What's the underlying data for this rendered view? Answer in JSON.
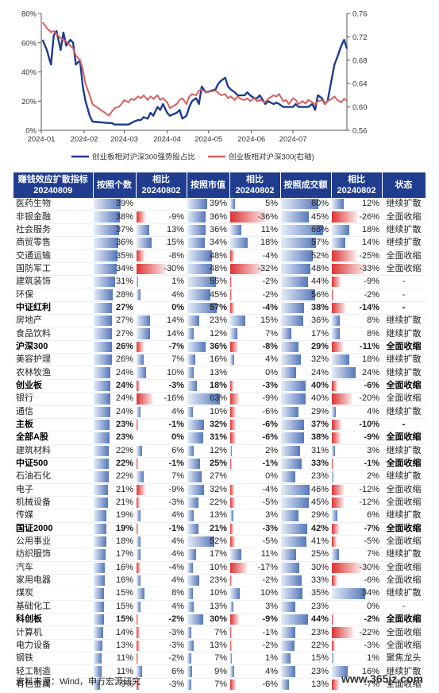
{
  "chart_data": [
    {
      "type": "line",
      "x_ticks": [
        "2024-01",
        "2024-02",
        "2024-03",
        "2024-04",
        "2024-05",
        "2024-06",
        "2024-07"
      ],
      "y_ticks": [
        "0%",
        "20%",
        "40%",
        "60%",
        "80%"
      ],
      "y2_ticks": [
        "0.56",
        "0.60",
        "0.64",
        "0.68",
        "0.72",
        "0.76"
      ],
      "ylim": [
        0,
        80
      ],
      "y2lim": [
        0.56,
        0.76
      ],
      "xlim": [
        "2024-01-01",
        "2024-08-09"
      ],
      "legend_position": "bottom",
      "series": [
        {
          "name": "创业板相对沪深300强势股占比",
          "axis": "left",
          "color": "#1f3a8f",
          "x": [
            "2024-01-02",
            "2024-01-05",
            "2024-01-08",
            "2024-01-10",
            "2024-01-12",
            "2024-01-15",
            "2024-01-17",
            "2024-01-19",
            "2024-01-22",
            "2024-01-24",
            "2024-01-26",
            "2024-01-29",
            "2024-01-31",
            "2024-02-02",
            "2024-02-05",
            "2024-02-07",
            "2024-02-19",
            "2024-02-21",
            "2024-02-23",
            "2024-02-26",
            "2024-02-28",
            "2024-03-01",
            "2024-03-04",
            "2024-03-06",
            "2024-03-08",
            "2024-03-11",
            "2024-03-13",
            "2024-03-15",
            "2024-03-18",
            "2024-03-20",
            "2024-03-22",
            "2024-03-25",
            "2024-03-27",
            "2024-03-29",
            "2024-04-01",
            "2024-04-03",
            "2024-04-08",
            "2024-04-10",
            "2024-04-12",
            "2024-04-15",
            "2024-04-17",
            "2024-04-19",
            "2024-04-22",
            "2024-04-24",
            "2024-04-26",
            "2024-04-29",
            "2024-05-06",
            "2024-05-08",
            "2024-05-10",
            "2024-05-13",
            "2024-05-15",
            "2024-05-17",
            "2024-05-20",
            "2024-05-22",
            "2024-05-24",
            "2024-05-27",
            "2024-05-29",
            "2024-05-31",
            "2024-06-03",
            "2024-06-05",
            "2024-06-07",
            "2024-06-11",
            "2024-06-13",
            "2024-06-17",
            "2024-06-19",
            "2024-06-21",
            "2024-06-24",
            "2024-06-26",
            "2024-06-28",
            "2024-07-01",
            "2024-07-03",
            "2024-07-05",
            "2024-07-08",
            "2024-07-10",
            "2024-07-12",
            "2024-07-15",
            "2024-07-17",
            "2024-07-19",
            "2024-07-22",
            "2024-07-24",
            "2024-07-26",
            "2024-07-29",
            "2024-07-31",
            "2024-08-02",
            "2024-08-05",
            "2024-08-07",
            "2024-08-09"
          ],
          "values": [
            62,
            55,
            45,
            65,
            68,
            55,
            67,
            58,
            62,
            60,
            45,
            48,
            30,
            20,
            10,
            6,
            5,
            5,
            4,
            4,
            4,
            4,
            4,
            5,
            6,
            7,
            7,
            9,
            8,
            12,
            10,
            16,
            14,
            18,
            12,
            10,
            12,
            14,
            8,
            10,
            16,
            20,
            22,
            18,
            30,
            26,
            28,
            32,
            34,
            36,
            30,
            28,
            26,
            24,
            24,
            24,
            26,
            24,
            22,
            22,
            24,
            18,
            20,
            18,
            19,
            18,
            16,
            16,
            16,
            16,
            18,
            16,
            16,
            16,
            16,
            18,
            14,
            24,
            22,
            18,
            20,
            35,
            45,
            50,
            58,
            62,
            56
          ]
        },
        {
          "name": "创业板相对沪深300(右轴)",
          "axis": "right",
          "color": "#d95f5f",
          "x": [
            "2024-01-02",
            "2024-01-05",
            "2024-01-08",
            "2024-01-10",
            "2024-01-12",
            "2024-01-15",
            "2024-01-17",
            "2024-01-19",
            "2024-01-22",
            "2024-01-24",
            "2024-01-26",
            "2024-01-29",
            "2024-01-31",
            "2024-02-02",
            "2024-02-05",
            "2024-02-07",
            "2024-02-19",
            "2024-02-21",
            "2024-02-23",
            "2024-02-26",
            "2024-02-28",
            "2024-03-01",
            "2024-03-04",
            "2024-03-06",
            "2024-03-08",
            "2024-03-11",
            "2024-03-13",
            "2024-03-15",
            "2024-03-18",
            "2024-03-20",
            "2024-03-22",
            "2024-03-25",
            "2024-03-27",
            "2024-03-29",
            "2024-04-01",
            "2024-04-03",
            "2024-04-08",
            "2024-04-10",
            "2024-04-12",
            "2024-04-15",
            "2024-04-17",
            "2024-04-19",
            "2024-04-22",
            "2024-04-24",
            "2024-04-26",
            "2024-04-29",
            "2024-05-06",
            "2024-05-08",
            "2024-05-10",
            "2024-05-13",
            "2024-05-15",
            "2024-05-17",
            "2024-05-20",
            "2024-05-22",
            "2024-05-24",
            "2024-05-27",
            "2024-05-29",
            "2024-05-31",
            "2024-06-03",
            "2024-06-05",
            "2024-06-07",
            "2024-06-11",
            "2024-06-13",
            "2024-06-17",
            "2024-06-19",
            "2024-06-21",
            "2024-06-24",
            "2024-06-26",
            "2024-06-28",
            "2024-07-01",
            "2024-07-03",
            "2024-07-05",
            "2024-07-08",
            "2024-07-10",
            "2024-07-12",
            "2024-07-15",
            "2024-07-17",
            "2024-07-19",
            "2024-07-22",
            "2024-07-24",
            "2024-07-26",
            "2024-07-29",
            "2024-07-31",
            "2024-08-02",
            "2024-08-05",
            "2024-08-07",
            "2024-08-09"
          ],
          "values": [
            0.745,
            0.735,
            0.728,
            0.73,
            0.725,
            0.718,
            0.715,
            0.712,
            0.705,
            0.7,
            0.688,
            0.68,
            0.665,
            0.64,
            0.62,
            0.605,
            0.585,
            0.592,
            0.598,
            0.6,
            0.605,
            0.612,
            0.608,
            0.614,
            0.612,
            0.618,
            0.615,
            0.62,
            0.612,
            0.618,
            0.614,
            0.62,
            0.612,
            0.615,
            0.608,
            0.598,
            0.605,
            0.612,
            0.615,
            0.605,
            0.618,
            0.622,
            0.62,
            0.628,
            0.63,
            0.625,
            0.628,
            0.624,
            0.62,
            0.622,
            0.615,
            0.618,
            0.612,
            0.618,
            0.614,
            0.612,
            0.615,
            0.61,
            0.615,
            0.61,
            0.612,
            0.608,
            0.614,
            0.62,
            0.618,
            0.622,
            0.61,
            0.612,
            0.605,
            0.615,
            0.612,
            0.605,
            0.61,
            0.606,
            0.612,
            0.608,
            0.604,
            0.61,
            0.612,
            0.605,
            0.61,
            0.614,
            0.618,
            0.612,
            0.608,
            0.614,
            0.61
          ]
        }
      ]
    },
    {
      "type": "table",
      "headers": [
        "赚钱效应扩散指标\n20240809",
        "按照个数",
        "相比\n20240802",
        "按照市值",
        "相比\n20240802",
        "按照成交额",
        "相比\n20240802",
        "状态"
      ],
      "value_columns": [
        {
          "key": "c",
          "max": 60
        },
        {
          "key": "cd",
          "max": 50
        },
        {
          "key": "m",
          "max": 80
        },
        {
          "key": "md",
          "max": 50
        },
        {
          "key": "t",
          "max": 80
        },
        {
          "key": "td",
          "max": 50
        }
      ],
      "rows": [
        {
          "name": "医药生物",
          "c": "39%",
          "cd": "",
          "m": "39%",
          "md": "5%",
          "t": "60%",
          "td": "12%",
          "status": "继续扩散",
          "bold": false
        },
        {
          "name": "非银金融",
          "c": "38%",
          "cd": "-9%",
          "m": "36%",
          "md": "-36%",
          "t": "45%",
          "td": "-26%",
          "status": "全面收缩",
          "bold": false
        },
        {
          "name": "社会服务",
          "c": "37%",
          "cd": "13%",
          "m": "36%",
          "md": "11%",
          "t": "68%",
          "td": "18%",
          "status": "继续扩散",
          "bold": false
        },
        {
          "name": "商贸零售",
          "c": "36%",
          "cd": "15%",
          "m": "34%",
          "md": "18%",
          "t": "57%",
          "td": "14%",
          "status": "继续扩散",
          "bold": false
        },
        {
          "name": "交通运输",
          "c": "35%",
          "cd": "-8%",
          "m": "48%",
          "md": "-4%",
          "t": "52%",
          "td": "-25%",
          "status": "全面收缩",
          "bold": false
        },
        {
          "name": "国防军工",
          "c": "34%",
          "cd": "-30%",
          "m": "48%",
          "md": "-32%",
          "t": "48%",
          "td": "-33%",
          "status": "全面收缩",
          "bold": false
        },
        {
          "name": "建筑装饰",
          "c": "31%",
          "cd": "1%",
          "m": "55%",
          "md": "-2%",
          "t": "44%",
          "td": "-9%",
          "status": "-",
          "bold": false
        },
        {
          "name": "环保",
          "c": "28%",
          "cd": "4%",
          "m": "45%",
          "md": "-2%",
          "t": "56%",
          "td": "-2%",
          "status": "-",
          "bold": false
        },
        {
          "name": "中证红利",
          "c": "27%",
          "cd": "0%",
          "m": "57%",
          "md": "-4%",
          "t": "38%",
          "td": "-14%",
          "status": "-",
          "bold": true
        },
        {
          "name": "房地产",
          "c": "27%",
          "cd": "14%",
          "m": "23%",
          "md": "15%",
          "t": "36%",
          "td": "8%",
          "status": "继续扩散",
          "bold": false
        },
        {
          "name": "食品饮料",
          "c": "27%",
          "cd": "14%",
          "m": "12%",
          "md": "7%",
          "t": "17%",
          "td": "8%",
          "status": "继续扩散",
          "bold": false
        },
        {
          "name": "沪深300",
          "c": "26%",
          "cd": "-7%",
          "m": "36%",
          "md": "-8%",
          "t": "29%",
          "td": "-11%",
          "status": "全面收缩",
          "bold": true
        },
        {
          "name": "美容护理",
          "c": "26%",
          "cd": "7%",
          "m": "16%",
          "md": "4%",
          "t": "32%",
          "td": "18%",
          "status": "继续扩散",
          "bold": false
        },
        {
          "name": "农林牧渔",
          "c": "24%",
          "cd": "10%",
          "m": "13%",
          "md": "0%",
          "t": "24%",
          "td": "24%",
          "status": "继续扩散",
          "bold": false
        },
        {
          "name": "创业板",
          "c": "24%",
          "cd": "-3%",
          "m": "18%",
          "md": "-3%",
          "t": "40%",
          "td": "-6%",
          "status": "全面收缩",
          "bold": true
        },
        {
          "name": "银行",
          "c": "24%",
          "cd": "-16%",
          "m": "63%",
          "md": "-9%",
          "t": "40%",
          "td": "-20%",
          "status": "全面收缩",
          "bold": false
        },
        {
          "name": "通信",
          "c": "24%",
          "cd": "4%",
          "m": "10%",
          "md": "-6%",
          "t": "29%",
          "td": "4%",
          "status": "继续扩散",
          "bold": false
        },
        {
          "name": "主板",
          "c": "23%",
          "cd": "-1%",
          "m": "32%",
          "md": "-6%",
          "t": "37%",
          "td": "-10%",
          "status": "-",
          "bold": true
        },
        {
          "name": "全部A股",
          "c": "23%",
          "cd": "0%",
          "m": "31%",
          "md": "-6%",
          "t": "38%",
          "td": "-9%",
          "status": "全面收缩",
          "bold": true
        },
        {
          "name": "建筑材料",
          "c": "22%",
          "cd": "6%",
          "m": "12%",
          "md": "2%",
          "t": "31%",
          "td": "3%",
          "status": "继续扩散",
          "bold": false
        },
        {
          "name": "中证500",
          "c": "22%",
          "cd": "-1%",
          "m": "25%",
          "md": "-1%",
          "t": "33%",
          "td": "-1%",
          "status": "全面收缩",
          "bold": true
        },
        {
          "name": "石油石化",
          "c": "22%",
          "cd": "7%",
          "m": "27%",
          "md": "0%",
          "t": "23%",
          "td": "2%",
          "status": "继续扩散",
          "bold": false
        },
        {
          "name": "电子",
          "c": "21%",
          "cd": "-9%",
          "m": "32%",
          "md": "-4%",
          "t": "46%",
          "td": "-12%",
          "status": "全面收缩",
          "bold": false
        },
        {
          "name": "机械设备",
          "c": "21%",
          "cd": "-3%",
          "m": "22%",
          "md": "-5%",
          "t": "45%",
          "td": "-12%",
          "status": "全面收缩",
          "bold": false
        },
        {
          "name": "传媒",
          "c": "19%",
          "cd": "4%",
          "m": "13%",
          "md": "3%",
          "t": "29%",
          "td": "6%",
          "status": "继续扩散",
          "bold": false
        },
        {
          "name": "国证2000",
          "c": "19%",
          "cd": "-1%",
          "m": "21%",
          "md": "-3%",
          "t": "42%",
          "td": "-7%",
          "status": "全面收缩",
          "bold": true
        },
        {
          "name": "公用事业",
          "c": "18%",
          "cd": "4%",
          "m": "52%",
          "md": "-5%",
          "t": "41%",
          "td": "-5%",
          "status": "全面收缩",
          "bold": false
        },
        {
          "name": "纺织服饰",
          "c": "17%",
          "cd": "4%",
          "m": "17%",
          "md": "11%",
          "t": "25%",
          "td": "7%",
          "status": "继续扩散",
          "bold": false
        },
        {
          "name": "汽车",
          "c": "16%",
          "cd": "-4%",
          "m": "10%",
          "md": "-17%",
          "t": "30%",
          "td": "-30%",
          "status": "全面收缩",
          "bold": false
        },
        {
          "name": "家用电器",
          "c": "16%",
          "cd": "4%",
          "m": "23%",
          "md": "-2%",
          "t": "33%",
          "td": "-6%",
          "status": "全面收缩",
          "bold": false
        },
        {
          "name": "煤炭",
          "c": "15%",
          "cd": "8%",
          "m": "10%",
          "md": "10%",
          "t": "35%",
          "td": "34%",
          "status": "继续扩散",
          "bold": false
        },
        {
          "name": "基础化工",
          "c": "15%",
          "cd": "4%",
          "m": "13%",
          "md": "3%",
          "t": "23%",
          "td": "0%",
          "status": "-",
          "bold": false
        },
        {
          "name": "科创板",
          "c": "15%",
          "cd": "-2%",
          "m": "30%",
          "md": "-9%",
          "t": "44%",
          "td": "-2%",
          "status": "全面收缩",
          "bold": true
        },
        {
          "name": "计算机",
          "c": "14%",
          "cd": "-3%",
          "m": "7%",
          "md": "-1%",
          "t": "23%",
          "td": "-22%",
          "status": "全面收缩",
          "bold": false
        },
        {
          "name": "电力设备",
          "c": "13%",
          "cd": "-3%",
          "m": "13%",
          "md": "-2%",
          "t": "22%",
          "td": "-3%",
          "status": "全面收缩",
          "bold": false
        },
        {
          "name": "钢铁",
          "c": "11%",
          "cd": "-2%",
          "m": "7%",
          "md": "1%",
          "t": "15%",
          "td": "1%",
          "status": "聚焦龙头",
          "bold": false
        },
        {
          "name": "轻工制造",
          "c": "11%",
          "cd": "6%",
          "m": "9%",
          "md": "4%",
          "t": "23%",
          "td": "16%",
          "status": "继续扩散",
          "bold": false
        },
        {
          "name": "有色金属",
          "c": "9%",
          "cd": "-3%",
          "m": "7%",
          "md": "-6%",
          "t": "13%",
          "td": "-7%",
          "status": "全面收缩",
          "bold": false
        }
      ]
    }
  ],
  "footer": {
    "source": "资料来源：Wind，申万宏源研究",
    "watermark": "www.365jz.com"
  }
}
